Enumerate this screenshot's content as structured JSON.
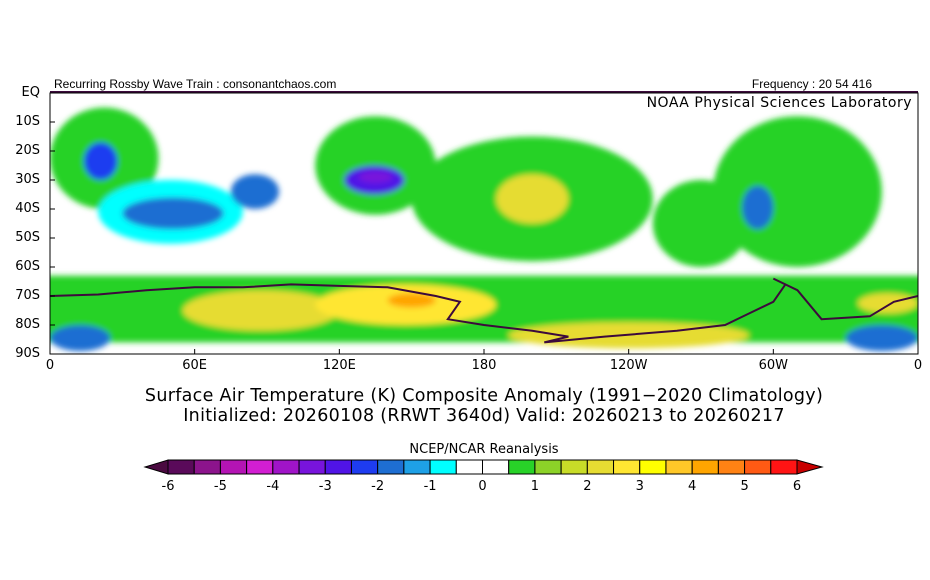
{
  "header": {
    "left": "Recurring Rossby Wave Train : consonantchaos.com",
    "right": "Frequency : 20 54 416",
    "credit": "NOAA Physical Sciences Laboratory"
  },
  "title": {
    "line1": "Surface Air Temperature (K) Composite Anomaly (1991−2020 Climatology)",
    "line2": "Initialized: 20260108 (RRWT 3640d) Valid: 20260213 to 20260217"
  },
  "axes": {
    "lat_labels": [
      "EQ",
      "10S",
      "20S",
      "30S",
      "40S",
      "50S",
      "60S",
      "70S",
      "80S",
      "90S"
    ],
    "lon_labels": [
      "0",
      "60E",
      "120E",
      "180",
      "120W",
      "60W",
      "0"
    ]
  },
  "colorbar": {
    "title": "NCEP/NCAR Reanalysis",
    "tick_labels": [
      "-6",
      "-5",
      "-4",
      "-3",
      "-2",
      "-1",
      "0",
      "1",
      "2",
      "3",
      "4",
      "5",
      "6"
    ],
    "low_arrow_color": "#4a0a40",
    "high_arrow_color": "#c80000",
    "levels": [
      -6,
      -5.5,
      -5,
      -4.5,
      -4,
      -3.5,
      -3,
      -2.5,
      -2,
      -1.5,
      -1,
      -0.5,
      0,
      0.5,
      1,
      1.5,
      2,
      2.5,
      3,
      3.5,
      4,
      4.5,
      5,
      5.5,
      6
    ],
    "colors": [
      "#5a0a5a",
      "#8c148c",
      "#b414b4",
      "#d21ed2",
      "#a014c8",
      "#7814dc",
      "#5014e6",
      "#1e3cf0",
      "#1e6ed2",
      "#1ea0e6",
      "#00ffff",
      "#ffffff",
      "#ffffff",
      "#28d228",
      "#8cd228",
      "#c8dc28",
      "#e6dc32",
      "#ffe632",
      "#ffff00",
      "#ffc828",
      "#ffa500",
      "#ff8214",
      "#ff5a14",
      "#ff1414"
    ]
  },
  "chart_data": {
    "type": "heatmap",
    "title": "Surface Air Temperature (K) Composite Anomaly (1991-2020 Climatology)",
    "units": "K",
    "lon_range": [
      0,
      360
    ],
    "lat_range": [
      -90,
      0
    ],
    "anomaly_regions": [
      {
        "name": "southern-ocean-band",
        "lon": [
          0,
          360
        ],
        "lat": [
          -86,
          -63
        ],
        "value": 0.8
      },
      {
        "name": "pacific-green",
        "lon": [
          150,
          250
        ],
        "lat": [
          -58,
          -15
        ],
        "value": 0.8
      },
      {
        "name": "australia-green",
        "lon": [
          110,
          160
        ],
        "lat": [
          -42,
          -8
        ],
        "value": 0.8
      },
      {
        "name": "africa-green",
        "lon": [
          0,
          45
        ],
        "lat": [
          -40,
          -5
        ],
        "value": 0.8
      },
      {
        "name": "south-america-green",
        "lon": [
          275,
          345
        ],
        "lat": [
          -60,
          -8
        ],
        "value": 0.8
      },
      {
        "name": "east-pacific-green",
        "lon": [
          250,
          290
        ],
        "lat": [
          -60,
          -30
        ],
        "value": 0.8
      },
      {
        "name": "indian-cyan",
        "lon": [
          20,
          80
        ],
        "lat": [
          -52,
          -30
        ],
        "value": -0.8
      },
      {
        "name": "indian-blue",
        "lon": [
          30,
          72
        ],
        "lat": [
          -47,
          -36
        ],
        "value": -1.6
      },
      {
        "name": "indian-east-blue",
        "lon": [
          75,
          95
        ],
        "lat": [
          -40,
          -28
        ],
        "value": -1.6
      },
      {
        "name": "australia-cold",
        "lon": [
          122,
          147
        ],
        "lat": [
          -35,
          -25
        ],
        "value": -2.6
      },
      {
        "name": "australia-core",
        "lon": [
          128,
          142
        ],
        "lat": [
          -31,
          -27
        ],
        "value": -3.2
      },
      {
        "name": "s-africa-cold",
        "lon": [
          14,
          28
        ],
        "lat": [
          -30,
          -17
        ],
        "value": -2.4
      },
      {
        "name": "s-america-cold",
        "lon": [
          287,
          300
        ],
        "lat": [
          -47,
          -32
        ],
        "value": -1.8
      },
      {
        "name": "pacific-warm",
        "lon": [
          185,
          215
        ],
        "lat": [
          -45,
          -28
        ],
        "value": 2.0
      },
      {
        "name": "antarctic-warm-west",
        "lon": [
          55,
          120
        ],
        "lat": [
          -82,
          -68
        ],
        "value": 2.2
      },
      {
        "name": "antarctic-warm",
        "lon": [
          110,
          185
        ],
        "lat": [
          -80,
          -66
        ],
        "value": 2.8
      },
      {
        "name": "antarctic-hot",
        "lon": [
          140,
          160
        ],
        "lat": [
          -74,
          -69
        ],
        "value": 4.0
      },
      {
        "name": "ross-warm",
        "lon": [
          190,
          290
        ],
        "lat": [
          -88,
          -79
        ],
        "value": 2.3
      },
      {
        "name": "weddell-cold-east",
        "lon": [
          330,
          360
        ],
        "lat": [
          -89,
          -80
        ],
        "value": -1.8
      },
      {
        "name": "weddell-cold-west",
        "lon": [
          0,
          25
        ],
        "lat": [
          -89,
          -80
        ],
        "value": -1.8
      },
      {
        "name": "ice-shelf-warm",
        "lon": [
          335,
          360
        ],
        "lat": [
          -76,
          -69
        ],
        "value": 2.0
      }
    ],
    "coastline_antarctica": [
      [
        0,
        -70
      ],
      [
        20,
        -69.5
      ],
      [
        40,
        -68
      ],
      [
        60,
        -67
      ],
      [
        80,
        -67
      ],
      [
        100,
        -66
      ],
      [
        120,
        -66.5
      ],
      [
        140,
        -67
      ],
      [
        160,
        -70
      ],
      [
        170,
        -72
      ],
      [
        165,
        -78
      ],
      [
        180,
        -80
      ],
      [
        200,
        -82
      ],
      [
        215,
        -84
      ],
      [
        205,
        -86
      ],
      [
        230,
        -84
      ],
      [
        260,
        -82
      ],
      [
        280,
        -80
      ],
      [
        290,
        -76
      ],
      [
        300,
        -72
      ],
      [
        305,
        -66
      ],
      [
        300,
        -64
      ],
      [
        310,
        -68
      ],
      [
        320,
        -78
      ],
      [
        340,
        -77
      ],
      [
        350,
        -72
      ],
      [
        360,
        -70
      ]
    ]
  }
}
